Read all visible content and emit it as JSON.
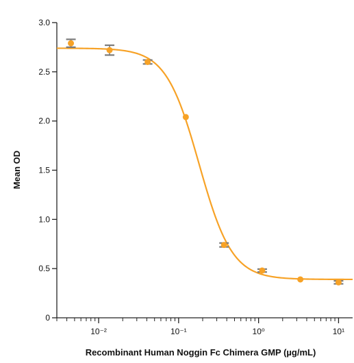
{
  "chart_data": {
    "type": "scatter",
    "xlabel": "Recombinant Human Noggin Fc Chimera GMP (µg/mL)",
    "ylabel": "Mean OD",
    "x_scale": "log",
    "xlim": [
      0.003,
      15
    ],
    "ylim": [
      0,
      3.0
    ],
    "yticks": [
      {
        "value": 0,
        "label": "0"
      },
      {
        "value": 0.5,
        "label": "0.5"
      },
      {
        "value": 1.0,
        "label": "1.0"
      },
      {
        "value": 1.5,
        "label": "1.5"
      },
      {
        "value": 2.0,
        "label": "2.0"
      },
      {
        "value": 2.5,
        "label": "2.5"
      },
      {
        "value": 3.0,
        "label": "3.0"
      }
    ],
    "xticks_major": [
      {
        "value": 0.01,
        "label": "10⁻²"
      },
      {
        "value": 0.1,
        "label": "10⁻¹"
      },
      {
        "value": 1,
        "label": "10⁰"
      },
      {
        "value": 10,
        "label": "10¹"
      }
    ],
    "grid": false,
    "series": [
      {
        "points": [
          {
            "x": 0.0045,
            "y": 2.79,
            "err": 0.04
          },
          {
            "x": 0.0137,
            "y": 2.72,
            "err": 0.05
          },
          {
            "x": 0.041,
            "y": 2.6,
            "err": 0.02
          },
          {
            "x": 0.123,
            "y": 2.04,
            "err": 0.0
          },
          {
            "x": 0.37,
            "y": 0.74,
            "err": 0.02
          },
          {
            "x": 1.11,
            "y": 0.48,
            "err": 0.015
          },
          {
            "x": 3.33,
            "y": 0.39,
            "err": 0.0
          },
          {
            "x": 10.0,
            "y": 0.36,
            "err": 0.015
          }
        ]
      }
    ],
    "fit_curve": {
      "bottom": 0.39,
      "top": 2.74,
      "ec50": 0.18,
      "hill": 2.1
    },
    "colors": {
      "series": "#f7a226",
      "curve": "#f7a226",
      "error_bar": "#7a7a7a",
      "axis": "#222222"
    }
  }
}
